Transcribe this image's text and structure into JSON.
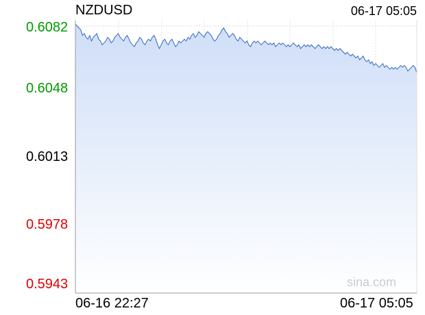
{
  "header": {
    "symbol": "NZDUSD",
    "timestamp": "06-17 05:05"
  },
  "watermark": "sina.com",
  "colors": {
    "up": "#009900",
    "flat": "#000000",
    "down": "#e00000",
    "line": "#3366bb",
    "fill_top": "#cfdef8",
    "grid": "#dddddd",
    "axis": "#999999"
  },
  "chart_data": {
    "type": "area",
    "title": "NZDUSD",
    "ylim": [
      0.5943,
      0.6082
    ],
    "y_ticks": [
      {
        "label": "0.6082",
        "value": 0.6082,
        "tone": "up"
      },
      {
        "label": "0.6048",
        "value": 0.6048,
        "tone": "up"
      },
      {
        "label": "0.6013",
        "value": 0.6013,
        "tone": "flat"
      },
      {
        "label": "0.5978",
        "value": 0.5978,
        "tone": "down"
      },
      {
        "label": "0.5943",
        "value": 0.5943,
        "tone": "down"
      }
    ],
    "x_labels": [
      "06-16 22:27",
      "06-17 05:05"
    ],
    "reference_price": 0.6013,
    "grid": true,
    "series": [
      {
        "values": [
          0.6083,
          0.6082,
          0.6081,
          0.608,
          0.6077,
          0.6078,
          0.6076,
          0.6075,
          0.6077,
          0.6074,
          0.6076,
          0.6077,
          0.6078,
          0.6075,
          0.6074,
          0.6072,
          0.6073,
          0.6074,
          0.6076,
          0.6075,
          0.6073,
          0.6074,
          0.6076,
          0.6077,
          0.6078,
          0.6076,
          0.6075,
          0.6074,
          0.6076,
          0.6077,
          0.6075,
          0.6073,
          0.6072,
          0.6071,
          0.6073,
          0.6074,
          0.6076,
          0.6075,
          0.6073,
          0.6072,
          0.6074,
          0.6075,
          0.6074,
          0.6076,
          0.6077,
          0.6075,
          0.6072,
          0.607,
          0.6072,
          0.6074,
          0.6075,
          0.6073,
          0.6072,
          0.6074,
          0.6075,
          0.6073,
          0.6071,
          0.6072,
          0.6074,
          0.6073,
          0.6074,
          0.6075,
          0.6074,
          0.6076,
          0.6075,
          0.6077,
          0.6078,
          0.6076,
          0.6077,
          0.6079,
          0.6078,
          0.6077,
          0.6076,
          0.6078,
          0.6079,
          0.6078,
          0.6077,
          0.6075,
          0.6074,
          0.6075,
          0.6077,
          0.6078,
          0.608,
          0.6081,
          0.6079,
          0.6078,
          0.6076,
          0.6077,
          0.6078,
          0.6077,
          0.6075,
          0.6074,
          0.6076,
          0.6075,
          0.6074,
          0.6073,
          0.6074,
          0.6072,
          0.6071,
          0.6073,
          0.6074,
          0.6073,
          0.6074,
          0.6073,
          0.6072,
          0.6073,
          0.6074,
          0.6073,
          0.6072,
          0.6073,
          0.6072,
          0.6073,
          0.6071,
          0.6072,
          0.6073,
          0.6072,
          0.6073,
          0.6072,
          0.6071,
          0.6072,
          0.6071,
          0.6072,
          0.6073,
          0.6072,
          0.6071,
          0.6072,
          0.607,
          0.6071,
          0.6072,
          0.6071,
          0.6072,
          0.6071,
          0.6072,
          0.6071,
          0.607,
          0.6071,
          0.6072,
          0.6071,
          0.607,
          0.6071,
          0.607,
          0.6071,
          0.607,
          0.6071,
          0.607,
          0.6069,
          0.607,
          0.6069,
          0.607,
          0.6069,
          0.6068,
          0.6067,
          0.6068,
          0.6067,
          0.6066,
          0.6067,
          0.6066,
          0.6065,
          0.6066,
          0.6064,
          0.6065,
          0.6066,
          0.6064,
          0.6063,
          0.6064,
          0.6062,
          0.6063,
          0.6061,
          0.6062,
          0.6061,
          0.606,
          0.6061,
          0.6062,
          0.606,
          0.6061,
          0.606,
          0.6059,
          0.606,
          0.6059,
          0.606,
          0.6059,
          0.606,
          0.6061,
          0.606,
          0.6061,
          0.606,
          0.6058,
          0.6059,
          0.606,
          0.6061,
          0.606,
          0.6057
        ]
      }
    ]
  }
}
